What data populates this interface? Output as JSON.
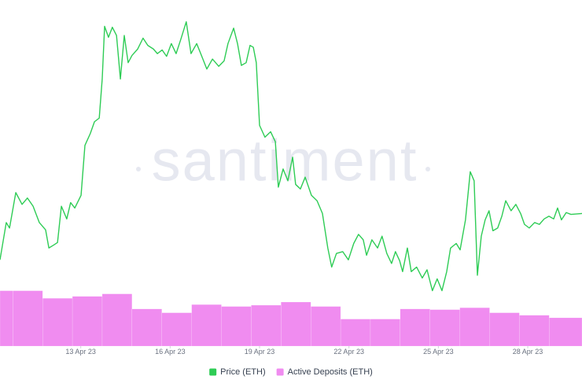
{
  "chart_data": {
    "type": "combo",
    "watermark": "santiment",
    "xlim": [
      10.29,
      29.82
    ],
    "xticks": [
      {
        "value": 13,
        "label": "13 Apr 23"
      },
      {
        "value": 16,
        "label": "16 Apr 23"
      },
      {
        "value": 19,
        "label": "19 Apr 23"
      },
      {
        "value": 22,
        "label": "22 Apr 23"
      },
      {
        "value": 25,
        "label": "25 Apr 23"
      },
      {
        "value": 28,
        "label": "28 Apr 23"
      }
    ],
    "ylim": [
      1769,
      2150
    ],
    "y2lim": [
      0,
      550
    ],
    "series": [
      {
        "name": "Price (ETH)",
        "type": "line",
        "color": "#2ecc55",
        "x": [
          10.29,
          10.5,
          10.61,
          10.82,
          11.03,
          11.21,
          11.4,
          11.61,
          11.82,
          11.93,
          12.08,
          12.22,
          12.35,
          12.53,
          12.66,
          12.8,
          13.01,
          13.14,
          13.32,
          13.46,
          13.62,
          13.72,
          13.8,
          13.93,
          14.06,
          14.2,
          14.33,
          14.46,
          14.59,
          14.72,
          14.91,
          15.09,
          15.25,
          15.44,
          15.57,
          15.73,
          15.88,
          16.04,
          16.2,
          16.36,
          16.54,
          16.7,
          16.89,
          17.05,
          17.23,
          17.42,
          17.63,
          17.81,
          17.94,
          18.13,
          18.26,
          18.39,
          18.55,
          18.68,
          18.79,
          18.89,
          19.0,
          19.18,
          19.37,
          19.53,
          19.63,
          19.79,
          19.95,
          20.11,
          20.21,
          20.37,
          20.53,
          20.74,
          20.93,
          21.11,
          21.29,
          21.42,
          21.58,
          21.79,
          21.98,
          22.16,
          22.32,
          22.48,
          22.59,
          22.77,
          22.96,
          23.11,
          23.27,
          23.43,
          23.56,
          23.7,
          23.8,
          23.96,
          24.09,
          24.27,
          24.46,
          24.62,
          24.8,
          24.96,
          25.12,
          25.28,
          25.41,
          25.6,
          25.73,
          25.91,
          26.07,
          26.2,
          26.31,
          26.44,
          26.57,
          26.7,
          26.83,
          26.99,
          27.13,
          27.26,
          27.44,
          27.6,
          27.76,
          27.89,
          28.05,
          28.23,
          28.39,
          28.55,
          28.71,
          28.87,
          29.0,
          29.13,
          29.29,
          29.45,
          29.82
        ],
        "values": [
          1864,
          1905,
          1899,
          1938,
          1925,
          1932,
          1923,
          1905,
          1897,
          1877,
          1880,
          1883,
          1923,
          1909,
          1927,
          1921,
          1935,
          1990,
          2003,
          2016,
          2020,
          2063,
          2121,
          2109,
          2120,
          2111,
          2063,
          2111,
          2081,
          2089,
          2096,
          2108,
          2100,
          2096,
          2091,
          2095,
          2088,
          2102,
          2091,
          2107,
          2126,
          2091,
          2102,
          2089,
          2074,
          2085,
          2077,
          2083,
          2102,
          2119,
          2102,
          2078,
          2081,
          2100,
          2098,
          2081,
          2012,
          1999,
          2005,
          1994,
          1944,
          1964,
          1951,
          1977,
          1947,
          1942,
          1955,
          1935,
          1929,
          1915,
          1877,
          1856,
          1871,
          1873,
          1864,
          1882,
          1892,
          1886,
          1869,
          1886,
          1877,
          1890,
          1871,
          1860,
          1873,
          1863,
          1851,
          1877,
          1851,
          1856,
          1844,
          1853,
          1830,
          1843,
          1830,
          1851,
          1877,
          1882,
          1875,
          1908,
          1961,
          1951,
          1847,
          1890,
          1908,
          1918,
          1896,
          1899,
          1912,
          1929,
          1918,
          1925,
          1915,
          1903,
          1899,
          1905,
          1903,
          1909,
          1912,
          1909,
          1921,
          1908,
          1916,
          1914,
          1915
        ]
      },
      {
        "name": "Active Deposits (ETH)",
        "type": "bar",
        "axis": "y2",
        "color": "#f08cf0",
        "bins": [
          10.29,
          10.72,
          11.72,
          12.72,
          13.72,
          14.72,
          15.72,
          16.72,
          17.72,
          18.72,
          19.72,
          20.72,
          21.72,
          22.72,
          23.72,
          24.72,
          25.72,
          26.72,
          27.72,
          28.72,
          29.82
        ],
        "values": [
          88,
          88,
          76,
          79,
          83,
          59,
          53,
          66,
          63,
          65,
          70,
          63,
          43,
          43,
          59,
          58,
          61,
          53,
          49,
          45
        ]
      }
    ]
  }
}
